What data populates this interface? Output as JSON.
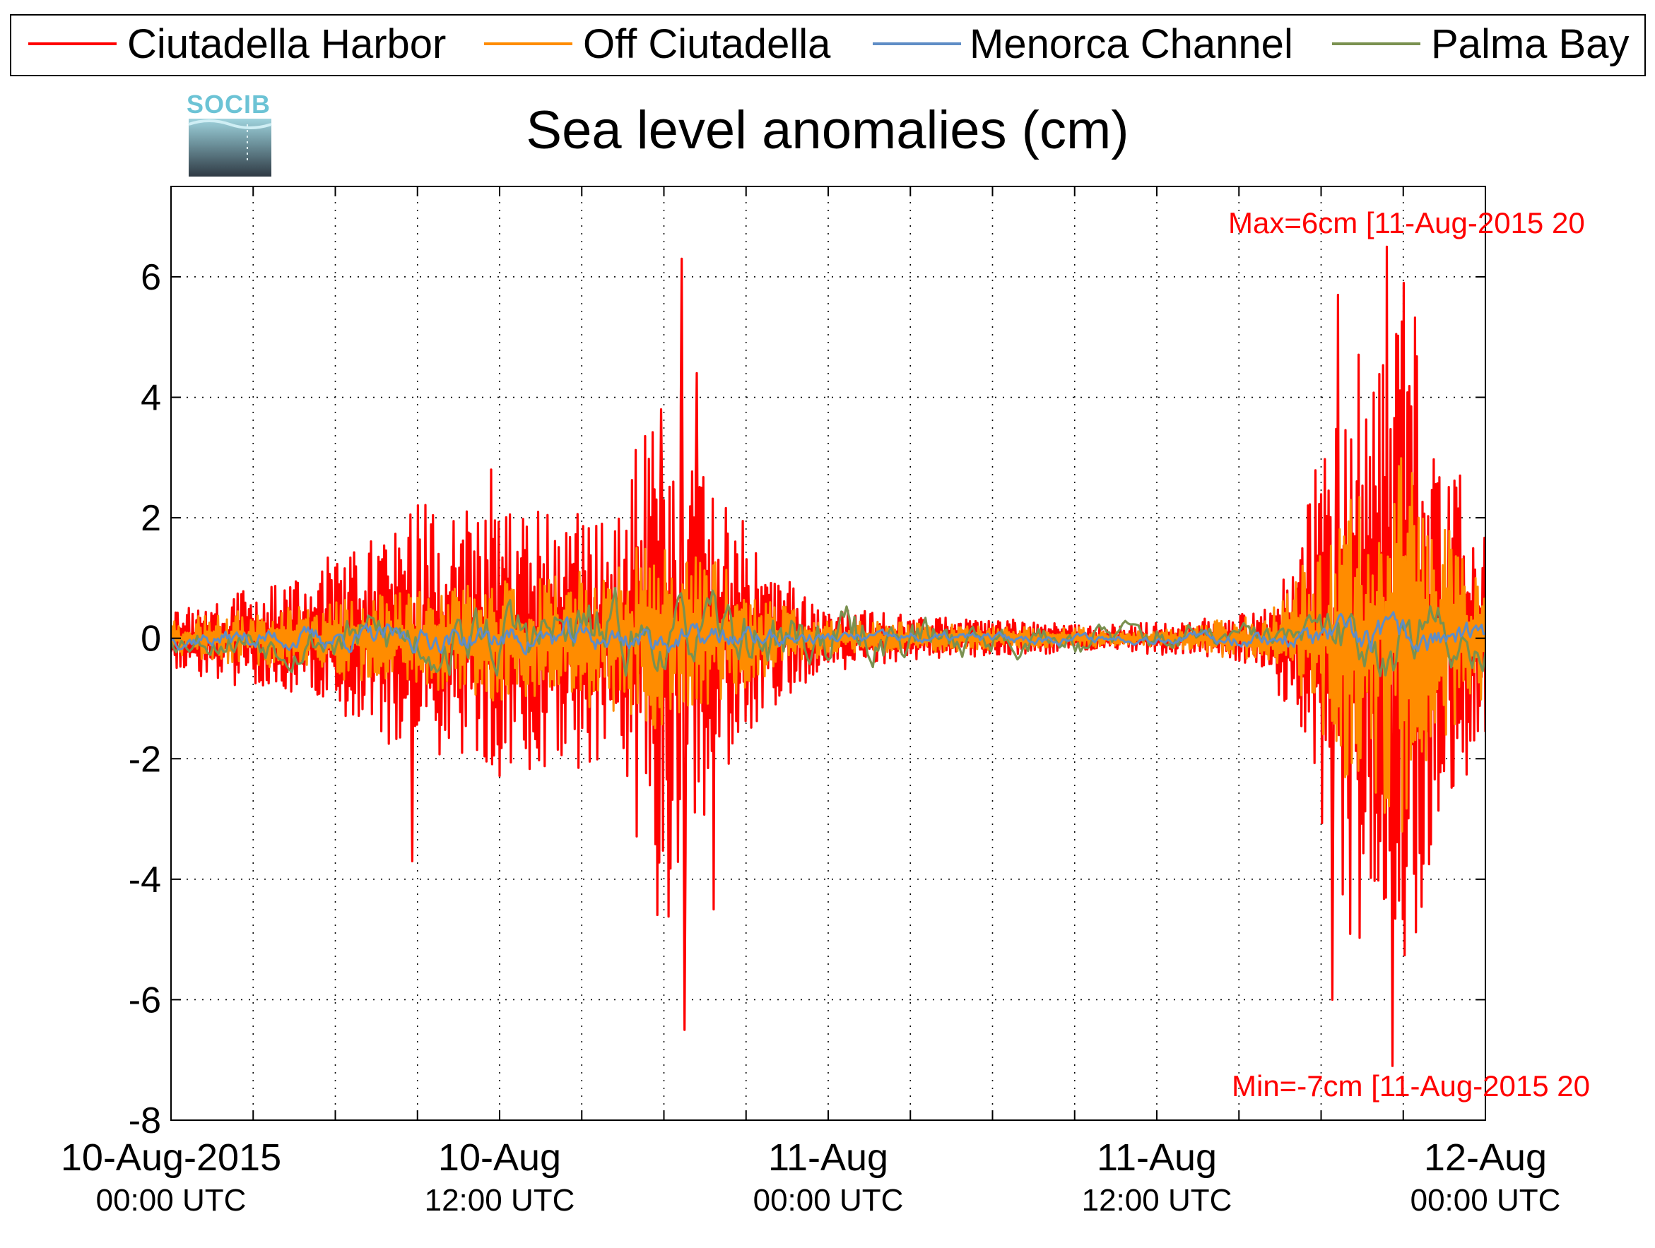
{
  "chart_data": {
    "type": "line",
    "title": "Sea level anomalies (cm)",
    "ylim": [
      -8,
      7.5
    ],
    "yticks": [
      6,
      4,
      2,
      0,
      -2,
      -4,
      -6,
      -8
    ],
    "ytick_labels": [
      "6",
      "4",
      "2",
      "0",
      "-2",
      "-4",
      "-6",
      "-8"
    ],
    "xlim_hours": [
      0,
      48
    ],
    "x_minor_tick_hours": [
      3,
      6,
      9,
      12,
      15,
      18,
      21,
      24,
      27,
      30,
      33,
      36,
      39,
      42,
      45
    ],
    "x_major_ticks": [
      {
        "hour": 0,
        "line1": "10-Aug-2015",
        "line2": "00:00 UTC"
      },
      {
        "hour": 12,
        "line1": "10-Aug",
        "line2": "12:00 UTC"
      },
      {
        "hour": 24,
        "line1": "11-Aug",
        "line2": "00:00 UTC"
      },
      {
        "hour": 36,
        "line1": "11-Aug",
        "line2": "12:00 UTC"
      },
      {
        "hour": 48,
        "line1": "12-Aug",
        "line2": "00:00 UTC"
      }
    ],
    "grid": true,
    "legend_position": "top",
    "series": [
      {
        "name": "Ciutadella Harbor",
        "color": "#ff0000",
        "amplitude_envelope": [
          [
            0,
            0.6
          ],
          [
            2,
            0.8
          ],
          [
            4,
            0.9
          ],
          [
            6,
            1.3
          ],
          [
            8,
            1.7
          ],
          [
            9,
            2.3
          ],
          [
            10,
            1.9
          ],
          [
            12,
            2.2
          ],
          [
            14,
            2.0
          ],
          [
            16,
            2.1
          ],
          [
            17,
            3.0
          ],
          [
            18,
            4.8
          ],
          [
            19,
            3.5
          ],
          [
            20,
            2.4
          ],
          [
            22,
            1.1
          ],
          [
            24,
            0.5
          ],
          [
            26,
            0.4
          ],
          [
            28,
            0.35
          ],
          [
            30,
            0.3
          ],
          [
            32,
            0.25
          ],
          [
            34,
            0.2
          ],
          [
            36,
            0.25
          ],
          [
            38,
            0.3
          ],
          [
            40,
            0.5
          ],
          [
            41,
            1.5
          ],
          [
            42,
            3.2
          ],
          [
            43,
            5.2
          ],
          [
            44,
            4.5
          ],
          [
            45,
            5.8
          ],
          [
            46,
            4.0
          ],
          [
            47,
            2.6
          ],
          [
            48,
            1.6
          ]
        ],
        "extremes": [
          {
            "hour": 8.8,
            "value": -3.7
          },
          {
            "hour": 11.7,
            "value": 2.8
          },
          {
            "hour": 17.9,
            "value": 3.8
          },
          {
            "hour": 18.65,
            "value": 6.3
          },
          {
            "hour": 18.75,
            "value": -6.5
          },
          {
            "hour": 19.2,
            "value": 4.4
          },
          {
            "hour": 19.8,
            "value": -4.5
          },
          {
            "hour": 42.4,
            "value": -6.0
          },
          {
            "hour": 42.6,
            "value": 5.7
          },
          {
            "hour": 44.4,
            "value": 6.5
          },
          {
            "hour": 44.6,
            "value": -7.1
          }
        ]
      },
      {
        "name": "Off Ciutadella",
        "color": "#ff8c00",
        "amplitude_envelope": [
          [
            0,
            0.3
          ],
          [
            4,
            0.5
          ],
          [
            8,
            0.8
          ],
          [
            12,
            1.0
          ],
          [
            16,
            1.1
          ],
          [
            18,
            1.8
          ],
          [
            20,
            1.2
          ],
          [
            22,
            0.6
          ],
          [
            24,
            0.3
          ],
          [
            30,
            0.2
          ],
          [
            36,
            0.15
          ],
          [
            40,
            0.4
          ],
          [
            42,
            1.5
          ],
          [
            43,
            2.2
          ],
          [
            44,
            2.8
          ],
          [
            45,
            3.0
          ],
          [
            46,
            2.0
          ],
          [
            48,
            1.0
          ]
        ]
      },
      {
        "name": "Menorca Channel",
        "color": "#5f8dc6",
        "amplitude_envelope": [
          [
            0,
            0.2
          ],
          [
            8,
            0.3
          ],
          [
            16,
            0.35
          ],
          [
            20,
            0.3
          ],
          [
            24,
            0.15
          ],
          [
            36,
            0.1
          ],
          [
            40,
            0.2
          ],
          [
            44,
            0.45
          ],
          [
            48,
            0.3
          ]
        ]
      },
      {
        "name": "Palma Bay",
        "color": "#7a9150",
        "amplitude_envelope": [
          [
            0,
            0.3
          ],
          [
            6,
            0.6
          ],
          [
            10,
            0.8
          ],
          [
            14,
            1.0
          ],
          [
            18,
            0.8
          ],
          [
            22,
            0.9
          ],
          [
            24,
            0.8
          ],
          [
            28,
            0.5
          ],
          [
            32,
            0.3
          ],
          [
            34,
            0.4
          ],
          [
            36,
            0.35
          ],
          [
            40,
            0.3
          ],
          [
            44,
            0.9
          ],
          [
            48,
            0.8
          ]
        ]
      }
    ],
    "annotations": [
      {
        "text": "Max=6cm [11-Aug-2015 20",
        "anchor": "top"
      },
      {
        "text": "Min=-7cm [11-Aug-2015 20",
        "anchor": "bottom"
      }
    ]
  },
  "logo": {
    "label": "SOCIB"
  },
  "icons": {
    "logo": "socib-logo"
  }
}
